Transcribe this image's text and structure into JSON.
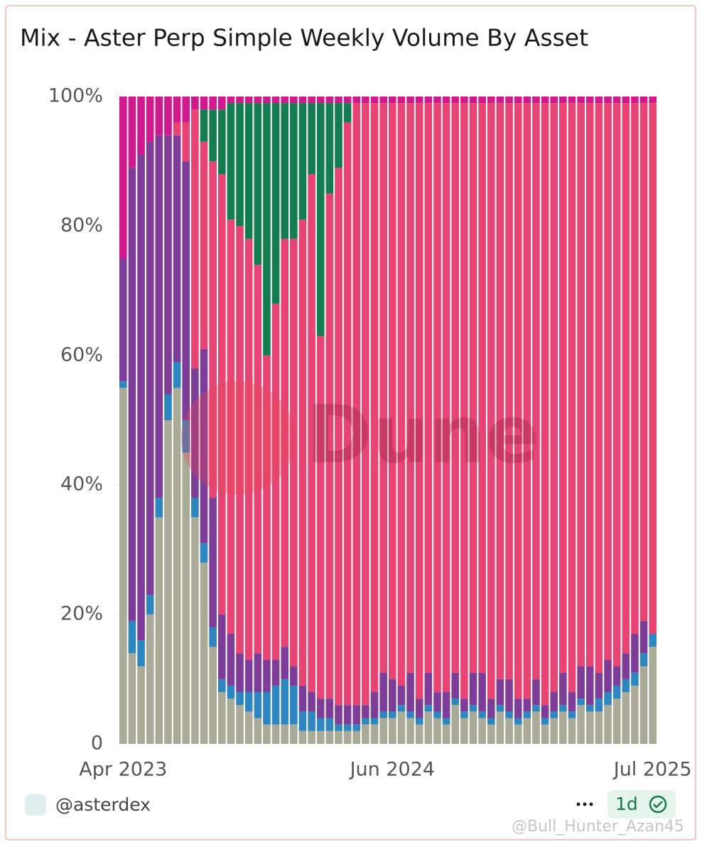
{
  "chart_data": {
    "type": "bar",
    "stacked": true,
    "title": "Mix - Aster Perp Simple Weekly Volume By Asset",
    "watermark": "Dune",
    "categories": [
      "Apr 2023",
      null,
      null,
      null,
      null,
      null,
      null,
      null,
      null,
      null,
      null,
      null,
      null,
      null,
      null,
      null,
      null,
      null,
      null,
      null,
      null,
      null,
      null,
      null,
      null,
      null,
      null,
      null,
      null,
      null,
      "Jun 2024",
      null,
      null,
      null,
      null,
      null,
      null,
      null,
      null,
      null,
      null,
      null,
      null,
      null,
      null,
      null,
      null,
      null,
      null,
      null,
      null,
      null,
      null,
      null,
      null,
      null,
      null,
      null,
      null,
      "Jul 2025"
    ],
    "series": [
      {
        "color": "#a9ab98",
        "values": [
          55,
          14,
          12,
          20,
          35,
          50,
          55,
          45,
          35,
          28,
          15,
          8,
          7,
          6,
          5,
          4,
          3,
          3,
          3,
          3,
          2,
          2,
          2,
          2,
          2,
          2,
          2,
          3,
          3,
          4,
          4,
          5,
          4,
          3,
          5,
          4,
          3,
          6,
          4,
          5,
          4,
          3,
          5,
          4,
          3,
          4,
          5,
          3,
          4,
          5,
          4,
          6,
          5,
          5,
          6,
          7,
          8,
          9,
          12,
          15
        ]
      },
      {
        "color": "#2e86c1",
        "values": [
          1,
          5,
          4,
          3,
          3,
          4,
          4,
          5,
          3,
          3,
          3,
          2,
          2,
          2,
          3,
          4,
          5,
          6,
          7,
          6,
          3,
          3,
          2,
          2,
          1,
          1,
          1,
          1,
          1,
          1,
          1,
          1,
          1,
          1,
          1,
          1,
          1,
          1,
          1,
          1,
          1,
          1,
          1,
          1,
          1,
          1,
          1,
          1,
          1,
          1,
          1,
          1,
          1,
          2,
          2,
          2,
          2,
          2,
          2,
          2
        ]
      },
      {
        "color": "#7d3c98",
        "values": [
          19,
          70,
          75,
          70,
          56,
          40,
          35,
          40,
          20,
          30,
          20,
          10,
          8,
          6,
          5,
          6,
          5,
          4,
          5,
          3,
          4,
          3,
          3,
          3,
          3,
          3,
          3,
          2,
          4,
          6,
          5,
          3,
          6,
          3,
          5,
          3,
          4,
          4,
          2,
          5,
          6,
          3,
          4,
          5,
          3,
          2,
          4,
          2,
          3,
          5,
          3,
          5,
          6,
          4,
          5,
          3,
          4,
          6,
          5,
          0
        ]
      },
      {
        "color": "#e84473",
        "values": [
          0,
          0,
          0,
          0,
          0,
          0,
          2,
          6,
          40,
          32,
          52,
          68,
          64,
          66,
          65,
          60,
          47,
          55,
          63,
          66,
          72,
          80,
          56,
          78,
          83,
          90,
          93,
          93,
          91,
          88,
          89,
          90,
          88,
          92,
          88,
          91,
          91,
          88,
          92,
          88,
          88,
          92,
          89,
          89,
          92,
          92,
          89,
          93,
          91,
          88,
          91,
          87,
          87,
          88,
          86,
          87,
          85,
          82,
          80,
          82
        ]
      },
      {
        "color": "#137d4f",
        "values": [
          0,
          0,
          0,
          0,
          0,
          0,
          0,
          0,
          0,
          5,
          8,
          10,
          18,
          19,
          21,
          25,
          39,
          31,
          21,
          21,
          18,
          11,
          36,
          14,
          10,
          3,
          0,
          0,
          0,
          0,
          0,
          0,
          0,
          0,
          0,
          0,
          0,
          0,
          0,
          0,
          0,
          0,
          0,
          0,
          0,
          0,
          0,
          0,
          0,
          0,
          0,
          0,
          0,
          0,
          0,
          0,
          0,
          0,
          0,
          0
        ]
      },
      {
        "color": "#d0198f",
        "values": [
          25,
          11,
          9,
          7,
          6,
          6,
          4,
          4,
          2,
          2,
          2,
          2,
          1,
          1,
          1,
          1,
          1,
          1,
          1,
          1,
          1,
          1,
          1,
          1,
          1,
          1,
          1,
          1,
          1,
          1,
          1,
          1,
          1,
          1,
          1,
          1,
          1,
          1,
          1,
          1,
          1,
          1,
          1,
          1,
          1,
          1,
          1,
          1,
          1,
          1,
          1,
          1,
          1,
          1,
          1,
          1,
          1,
          1,
          1,
          1
        ]
      }
    ],
    "ylim": [
      0,
      100
    ],
    "yticks": [
      0,
      {
        "value": 20,
        "label": "20%"
      },
      {
        "value": 40,
        "label": "40%"
      },
      {
        "value": 60,
        "label": "60%"
      },
      {
        "value": 80,
        "label": "80%"
      },
      {
        "value": 100,
        "label": "100%"
      }
    ],
    "grid": false
  },
  "footer": {
    "author": "@asterdex",
    "badge": "1d",
    "credit": "@Bull_Hunter_Azan45"
  }
}
